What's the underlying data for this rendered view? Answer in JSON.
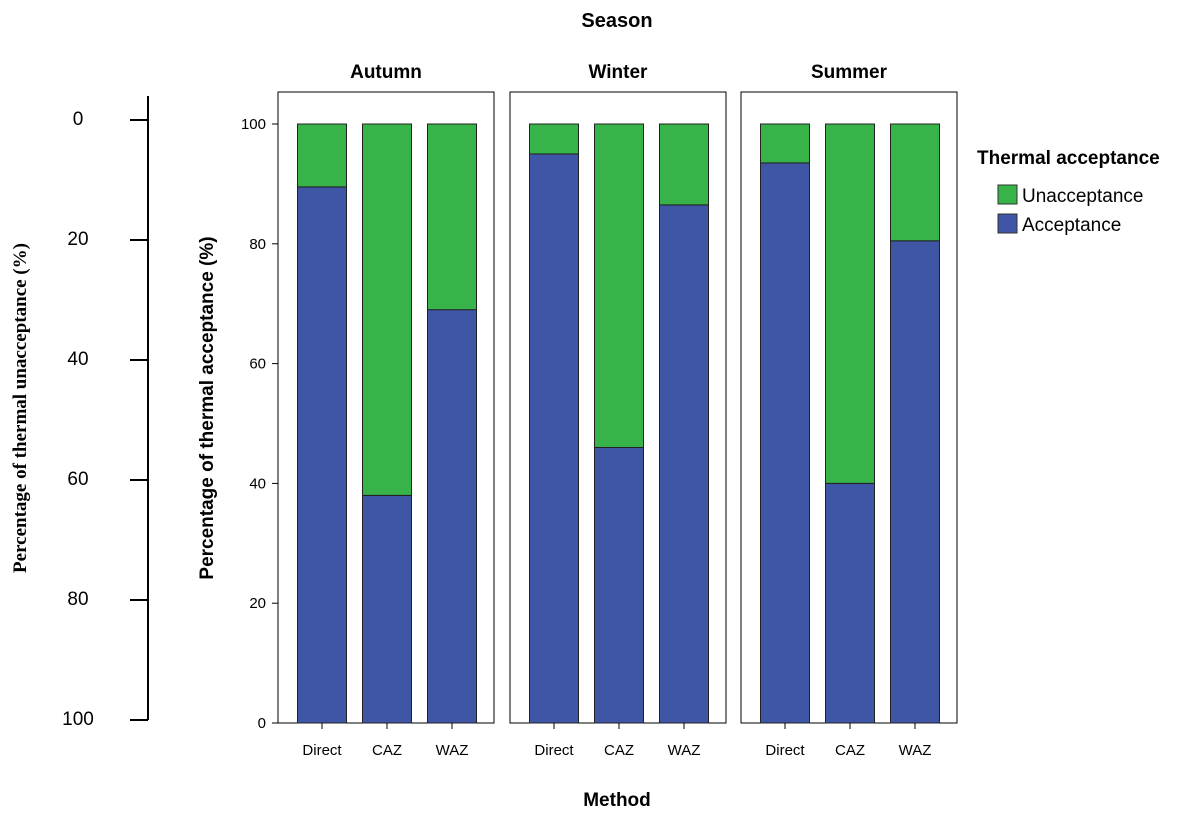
{
  "chart_data": {
    "type": "bar",
    "stacked": true,
    "title": "Season",
    "xlabel": "Method",
    "ylabel": "Percentage of thermal acceptance (%)",
    "ylim": [
      0,
      100
    ],
    "yticks": [
      "0",
      "20",
      "40",
      "60",
      "80",
      "100"
    ],
    "secondary_axis": {
      "label": "Percentage of thermal unacceptance (%)",
      "ticks": [
        "0",
        "20",
        "40",
        "60",
        "80",
        "100"
      ],
      "reversed": true
    },
    "legend": {
      "title": "Thermal acceptance",
      "position": "right",
      "entries": [
        "Unacceptance",
        "Acceptance"
      ]
    },
    "panels": [
      {
        "name": "Autumn",
        "categories": [
          "Direct",
          "CAZ",
          "WAZ"
        ],
        "series": [
          {
            "name": "Acceptance",
            "values": [
              89.5,
              38.0,
              69.0
            ]
          },
          {
            "name": "Unacceptance",
            "values": [
              10.5,
              62.0,
              31.0
            ]
          }
        ]
      },
      {
        "name": "Winter",
        "categories": [
          "Direct",
          "CAZ",
          "WAZ"
        ],
        "series": [
          {
            "name": "Acceptance",
            "values": [
              95.0,
              46.0,
              86.5
            ]
          },
          {
            "name": "Unacceptance",
            "values": [
              5.0,
              54.0,
              13.5
            ]
          }
        ]
      },
      {
        "name": "Summer",
        "categories": [
          "Direct",
          "CAZ",
          "WAZ"
        ],
        "series": [
          {
            "name": "Acceptance",
            "values": [
              93.5,
              40.0,
              80.5
            ]
          },
          {
            "name": "Unacceptance",
            "values": [
              6.5,
              60.0,
              19.5
            ]
          }
        ]
      }
    ],
    "colors": {
      "Acceptance": "#3f56a7",
      "Unacceptance": "#37b34a"
    }
  }
}
